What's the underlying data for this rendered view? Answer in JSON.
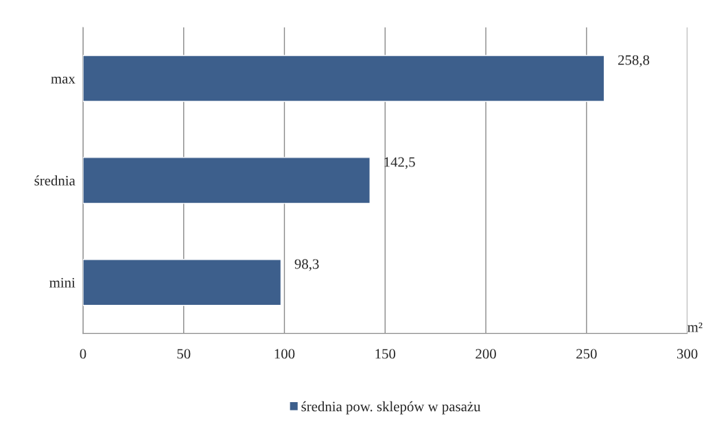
{
  "chart_data": {
    "type": "bar",
    "orientation": "horizontal",
    "categories": [
      "max",
      "średnia",
      "mini"
    ],
    "series": [
      {
        "name": "średnia pow. sklepów w pasażu",
        "color": "#3d5f8c",
        "values": [
          258.8,
          142.5,
          98.3
        ],
        "value_labels": [
          "258,8",
          "142,5",
          "98,3"
        ]
      }
    ],
    "xlabel": "m²",
    "xlim": [
      0,
      300
    ],
    "xticks": [
      0,
      50,
      100,
      150,
      200,
      250,
      300
    ],
    "grid": "x",
    "legend": "bottom"
  }
}
